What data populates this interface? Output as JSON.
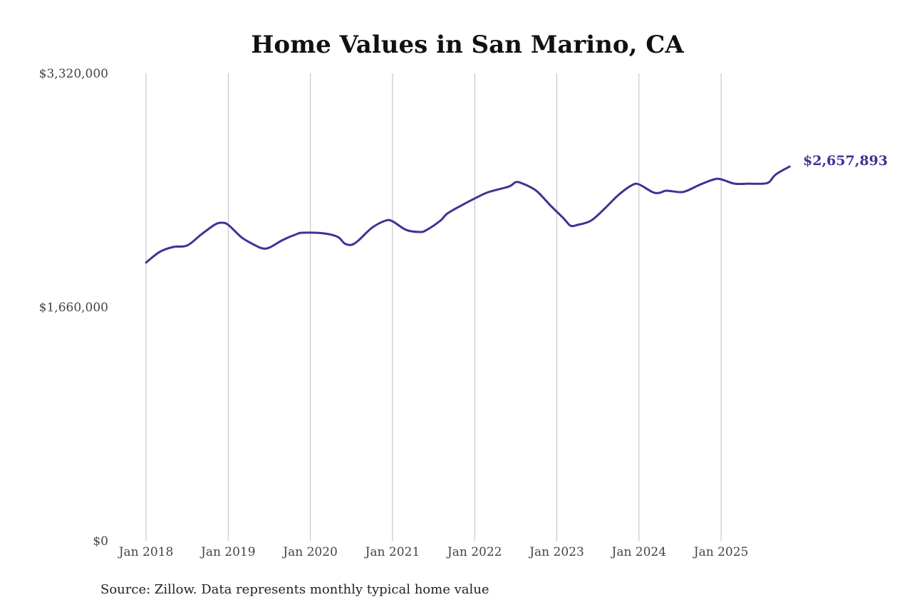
{
  "chart_data": {
    "type": "line",
    "title": "Home Values in San Marino, CA",
    "source": "Source: Zillow. Data represents monthly typical home value",
    "ylim": [
      0,
      3320000
    ],
    "y_ticks": [
      0,
      1660000,
      3320000
    ],
    "y_tick_labels": [
      "$0",
      "$1,660,000",
      "$3,320,000"
    ],
    "x_ticks": [
      "2018-01",
      "2019-01",
      "2020-01",
      "2021-01",
      "2022-01",
      "2023-01",
      "2024-01",
      "2025-01"
    ],
    "x_tick_labels": [
      "Jan 2018",
      "Jan 2019",
      "Jan 2020",
      "Jan 2021",
      "Jan 2022",
      "Jan 2023",
      "Jan 2024",
      "Jan 2025"
    ],
    "x_range": [
      "2018-01",
      "2025-11"
    ],
    "grid": {
      "vertical": true,
      "horizontal": false
    },
    "line_color": "#3b3494",
    "end_label": "$2,657,893",
    "x": [
      "2018-01",
      "2018-03",
      "2018-05",
      "2018-07",
      "2018-09",
      "2018-11",
      "2018-12",
      "2019-01",
      "2019-03",
      "2019-05",
      "2019-06",
      "2019-07",
      "2019-09",
      "2019-11",
      "2019-12",
      "2020-03",
      "2020-05",
      "2020-06",
      "2020-07",
      "2020-08",
      "2020-10",
      "2020-12",
      "2021-01",
      "2021-03",
      "2021-05",
      "2021-06",
      "2021-08",
      "2021-09",
      "2021-11",
      "2022-01",
      "2022-03",
      "2022-06",
      "2022-07",
      "2022-08",
      "2022-10",
      "2022-12",
      "2023-02",
      "2023-03",
      "2023-04",
      "2023-06",
      "2023-08",
      "2023-10",
      "2023-12",
      "2024-01",
      "2024-03",
      "2024-04",
      "2024-05",
      "2024-07",
      "2024-08",
      "2024-10",
      "2024-12",
      "2025-01",
      "2025-03",
      "2025-05",
      "2025-07",
      "2025-08",
      "2025-09",
      "2025-11"
    ],
    "values": [
      1976000,
      2052000,
      2087000,
      2097000,
      2173000,
      2244000,
      2259000,
      2244000,
      2153000,
      2097000,
      2077000,
      2082000,
      2137000,
      2178000,
      2188000,
      2183000,
      2158000,
      2112000,
      2102000,
      2132000,
      2223000,
      2274000,
      2269000,
      2208000,
      2193000,
      2208000,
      2274000,
      2324000,
      2380000,
      2431000,
      2476000,
      2516000,
      2547000,
      2537000,
      2486000,
      2385000,
      2289000,
      2238000,
      2243000,
      2274000,
      2360000,
      2456000,
      2526000,
      2531000,
      2476000,
      2471000,
      2486000,
      2476000,
      2486000,
      2531000,
      2567000,
      2567000,
      2536000,
      2536000,
      2536000,
      2547000,
      2602000,
      2657893
    ]
  }
}
